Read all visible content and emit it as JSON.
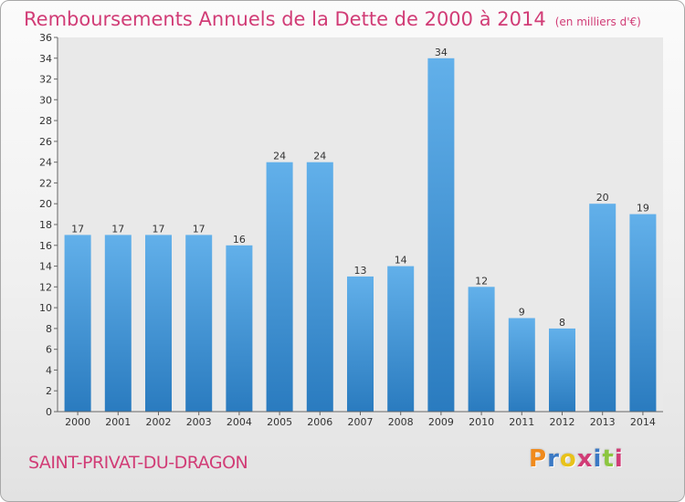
{
  "header": {
    "title": "Remboursements Annuels de la Dette de 2000 à 2014",
    "unit": "(en milliers d'€)"
  },
  "footer": {
    "commune": "SAINT-PRIVAT-DU-DRAGON",
    "logo": "Proxiti",
    "logo_colors": [
      "#f08a1c",
      "#3b79c4",
      "#e8c21a",
      "#d13c76",
      "#3b79c4",
      "#8cc63f",
      "#d13c76"
    ]
  },
  "chart_data": {
    "type": "bar",
    "title": "Remboursements Annuels de la Dette de 2000 à 2014",
    "categories": [
      "2000",
      "2001",
      "2002",
      "2003",
      "2004",
      "2005",
      "2006",
      "2007",
      "2008",
      "2009",
      "2010",
      "2011",
      "2012",
      "2013",
      "2014"
    ],
    "values": [
      17,
      17,
      17,
      17,
      16,
      24,
      24,
      13,
      14,
      34,
      12,
      9,
      8,
      20,
      19
    ],
    "ylim": [
      0,
      36
    ],
    "yticks": [
      0,
      2,
      4,
      6,
      8,
      10,
      12,
      14,
      16,
      18,
      20,
      22,
      24,
      26,
      28,
      30,
      32,
      34,
      36
    ],
    "grid": false,
    "data_labels": true,
    "bar_color_top": "#62b0ea",
    "bar_color_bottom": "#2a7bbf",
    "plot_background": "#e9e9e9"
  }
}
